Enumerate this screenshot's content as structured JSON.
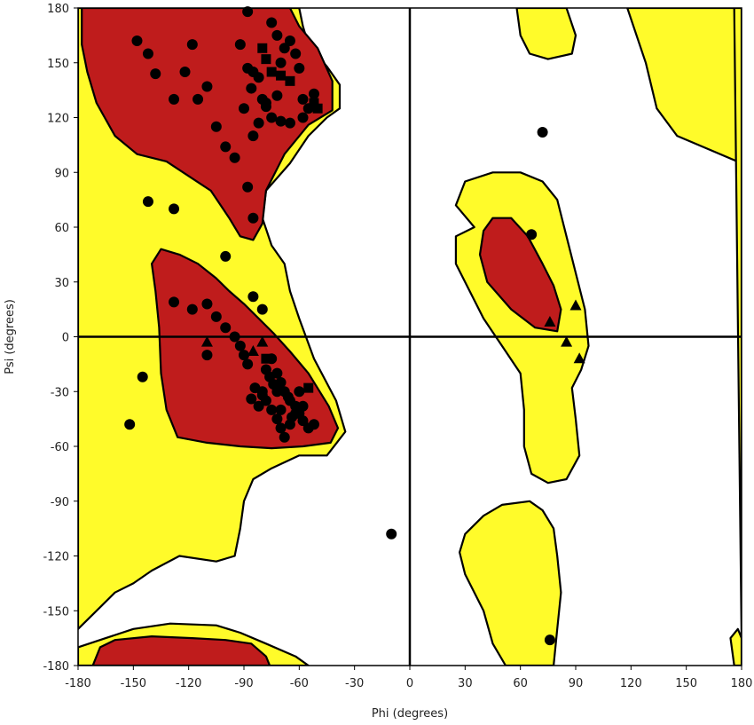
{
  "chart_data": {
    "type": "scatter",
    "title": "",
    "xlabel": "Phi (degrees)",
    "ylabel": "Psi (degrees)",
    "xlim": [
      -180,
      180
    ],
    "ylim": [
      -180,
      180
    ],
    "xticks": [
      -180,
      -150,
      -120,
      -90,
      -60,
      -30,
      0,
      30,
      60,
      90,
      120,
      150,
      180
    ],
    "yticks": [
      -180,
      -150,
      -120,
      -90,
      -60,
      -30,
      0,
      30,
      60,
      90,
      120,
      150,
      180
    ],
    "xtick_labels": [
      "-180",
      "-150",
      "-120",
      "-90",
      "-60",
      "-30",
      "0",
      "30",
      "60",
      "90",
      "120",
      "150",
      "180"
    ],
    "ytick_labels": [
      "-180",
      "-150",
      "-120",
      "-90",
      "-60",
      "-30",
      "0",
      "30",
      "60",
      "90",
      "120",
      "150",
      "180"
    ],
    "grid": false,
    "reference_lines": {
      "phi": 0,
      "psi": 0
    },
    "regions": {
      "colors": {
        "allowed": "#fffb2a",
        "favored": "#bf1c1c",
        "outline": "#000000"
      },
      "allowed": [
        [
          [
            -180,
            90
          ],
          [
            -180,
            -160
          ],
          [
            -170,
            -150
          ],
          [
            -160,
            -140
          ],
          [
            -150,
            -135
          ],
          [
            -140,
            -128
          ],
          [
            -125,
            -120
          ],
          [
            -105,
            -123
          ],
          [
            -95,
            -120
          ],
          [
            -92,
            -105
          ],
          [
            -90,
            -90
          ],
          [
            -85,
            -78
          ],
          [
            -75,
            -72
          ],
          [
            -60,
            -65
          ],
          [
            -45,
            -65
          ],
          [
            -35,
            -52
          ],
          [
            -40,
            -35
          ],
          [
            -52,
            -12
          ],
          [
            -60,
            10
          ],
          [
            -65,
            25
          ],
          [
            -68,
            40
          ],
          [
            -75,
            50
          ],
          [
            -80,
            65
          ],
          [
            -78,
            80
          ],
          [
            -65,
            95
          ],
          [
            -55,
            110
          ],
          [
            -45,
            120
          ],
          [
            -38,
            125
          ],
          [
            -38,
            138
          ],
          [
            -45,
            148
          ],
          [
            -55,
            160
          ],
          [
            -58,
            170
          ],
          [
            -60,
            180
          ],
          [
            -180,
            180
          ]
        ],
        [
          [
            -180,
            -180
          ],
          [
            -180,
            -170
          ],
          [
            -165,
            -165
          ],
          [
            -150,
            -160
          ],
          [
            -130,
            -157
          ],
          [
            -105,
            -158
          ],
          [
            -92,
            -162
          ],
          [
            -78,
            -168
          ],
          [
            -62,
            -175
          ],
          [
            -55,
            -180
          ]
        ],
        [
          [
            35,
            60
          ],
          [
            25,
            72
          ],
          [
            30,
            85
          ],
          [
            45,
            90
          ],
          [
            60,
            90
          ],
          [
            72,
            85
          ],
          [
            80,
            75
          ],
          [
            85,
            55
          ],
          [
            90,
            35
          ],
          [
            95,
            15
          ],
          [
            97,
            -5
          ],
          [
            93,
            -18
          ],
          [
            88,
            -28
          ],
          [
            90,
            -45
          ],
          [
            92,
            -65
          ],
          [
            85,
            -78
          ],
          [
            75,
            -80
          ],
          [
            66,
            -75
          ],
          [
            62,
            -60
          ],
          [
            62,
            -40
          ],
          [
            60,
            -20
          ],
          [
            50,
            -5
          ],
          [
            40,
            10
          ],
          [
            25,
            40
          ],
          [
            25,
            55
          ]
        ],
        [
          [
            50,
            -92
          ],
          [
            40,
            -98
          ],
          [
            30,
            -108
          ],
          [
            27,
            -118
          ],
          [
            30,
            -130
          ],
          [
            40,
            -150
          ],
          [
            45,
            -168
          ],
          [
            52,
            -180
          ],
          [
            78,
            -180
          ],
          [
            80,
            -160
          ],
          [
            82,
            -140
          ],
          [
            80,
            -120
          ],
          [
            78,
            -105
          ],
          [
            72,
            -95
          ],
          [
            65,
            -90
          ]
        ],
        [
          [
            118,
            180
          ],
          [
            128,
            150
          ],
          [
            134,
            125
          ],
          [
            145,
            110
          ],
          [
            180,
            95
          ],
          [
            180,
            180
          ]
        ],
        [
          [
            58,
            180
          ],
          [
            60,
            165
          ],
          [
            65,
            155
          ],
          [
            75,
            152
          ],
          [
            88,
            155
          ],
          [
            90,
            165
          ],
          [
            85,
            180
          ]
        ],
        [
          [
            176,
            180
          ],
          [
            180,
            180
          ],
          [
            180,
            -180
          ],
          [
            176,
            -180
          ],
          [
            174,
            -165
          ],
          [
            178,
            -160
          ],
          [
            180,
            -165
          ]
        ]
      ],
      "favored": [
        [
          [
            -178,
            180
          ],
          [
            -178,
            160
          ],
          [
            -175,
            145
          ],
          [
            -170,
            128
          ],
          [
            -160,
            110
          ],
          [
            -148,
            100
          ],
          [
            -132,
            96
          ],
          [
            -120,
            88
          ],
          [
            -108,
            80
          ],
          [
            -98,
            65
          ],
          [
            -92,
            55
          ],
          [
            -85,
            53
          ],
          [
            -80,
            62
          ],
          [
            -78,
            80
          ],
          [
            -68,
            100
          ],
          [
            -55,
            116
          ],
          [
            -42,
            124
          ],
          [
            -42,
            140
          ],
          [
            -50,
            158
          ],
          [
            -60,
            170
          ],
          [
            -65,
            180
          ]
        ],
        [
          [
            -140,
            40
          ],
          [
            -138,
            25
          ],
          [
            -136,
            5
          ],
          [
            -135,
            -20
          ],
          [
            -132,
            -40
          ],
          [
            -126,
            -55
          ],
          [
            -110,
            -58
          ],
          [
            -92,
            -60
          ],
          [
            -75,
            -61
          ],
          [
            -58,
            -60
          ],
          [
            -43,
            -58
          ],
          [
            -39,
            -50
          ],
          [
            -44,
            -38
          ],
          [
            -55,
            -20
          ],
          [
            -65,
            -8
          ],
          [
            -74,
            2
          ],
          [
            -82,
            10
          ],
          [
            -90,
            18
          ],
          [
            -98,
            25
          ],
          [
            -105,
            32
          ],
          [
            -115,
            40
          ],
          [
            -125,
            45
          ],
          [
            -135,
            48
          ]
        ],
        [
          [
            -172,
            -180
          ],
          [
            -168,
            -170
          ],
          [
            -160,
            -166
          ],
          [
            -140,
            -164
          ],
          [
            -118,
            -165
          ],
          [
            -100,
            -166
          ],
          [
            -86,
            -168
          ],
          [
            -78,
            -175
          ],
          [
            -76,
            -180
          ]
        ],
        [
          [
            40,
            58
          ],
          [
            38,
            45
          ],
          [
            42,
            30
          ],
          [
            55,
            15
          ],
          [
            68,
            5
          ],
          [
            80,
            3
          ],
          [
            82,
            15
          ],
          [
            78,
            28
          ],
          [
            72,
            40
          ],
          [
            64,
            55
          ],
          [
            55,
            65
          ],
          [
            45,
            65
          ]
        ]
      ]
    },
    "series": [
      {
        "marker": "circle",
        "points": [
          [
            -88,
            178
          ],
          [
            -148,
            162
          ],
          [
            -142,
            155
          ],
          [
            -138,
            144
          ],
          [
            -118,
            160
          ],
          [
            -122,
            145
          ],
          [
            -115,
            130
          ],
          [
            -110,
            137
          ],
          [
            -128,
            130
          ],
          [
            -105,
            115
          ],
          [
            -100,
            104
          ],
          [
            -92,
            160
          ],
          [
            -88,
            147
          ],
          [
            -85,
            145
          ],
          [
            -82,
            142
          ],
          [
            -86,
            136
          ],
          [
            -80,
            130
          ],
          [
            -78,
            128
          ],
          [
            -75,
            120
          ],
          [
            -72,
            132
          ],
          [
            -70,
            150
          ],
          [
            -68,
            158
          ],
          [
            -65,
            162
          ],
          [
            -62,
            155
          ],
          [
            -60,
            147
          ],
          [
            -58,
            130
          ],
          [
            -55,
            125
          ],
          [
            -52,
            133
          ],
          [
            -58,
            120
          ],
          [
            -65,
            117
          ],
          [
            -70,
            118
          ],
          [
            -78,
            126
          ],
          [
            -82,
            117
          ],
          [
            -85,
            110
          ],
          [
            -90,
            125
          ],
          [
            -95,
            98
          ],
          [
            -88,
            82
          ],
          [
            -85,
            65
          ],
          [
            -75,
            172
          ],
          [
            -72,
            165
          ],
          [
            -142,
            74
          ],
          [
            -128,
            70
          ],
          [
            -100,
            44
          ],
          [
            -128,
            19
          ],
          [
            -118,
            15
          ],
          [
            -110,
            18
          ],
          [
            -105,
            11
          ],
          [
            -100,
            5
          ],
          [
            -95,
            0
          ],
          [
            -92,
            -5
          ],
          [
            -90,
            -10
          ],
          [
            -88,
            -15
          ],
          [
            -85,
            22
          ],
          [
            -80,
            15
          ],
          [
            -75,
            -12
          ],
          [
            -78,
            -18
          ],
          [
            -72,
            -20
          ],
          [
            -70,
            -25
          ],
          [
            -68,
            -30
          ],
          [
            -65,
            -35
          ],
          [
            -62,
            -38
          ],
          [
            -60,
            -42
          ],
          [
            -58,
            -46
          ],
          [
            -55,
            -50
          ],
          [
            -52,
            -48
          ],
          [
            -80,
            -30
          ],
          [
            -78,
            -35
          ],
          [
            -75,
            -40
          ],
          [
            -72,
            -45
          ],
          [
            -70,
            -50
          ],
          [
            -68,
            -55
          ],
          [
            -65,
            -48
          ],
          [
            -62,
            -42
          ],
          [
            -58,
            -38
          ],
          [
            -72,
            -30
          ],
          [
            -74,
            -26
          ],
          [
            -76,
            -22
          ],
          [
            -84,
            -28
          ],
          [
            -80,
            -32
          ],
          [
            -66,
            -33
          ],
          [
            -64,
            -44
          ],
          [
            -70,
            -40
          ],
          [
            -60,
            -30
          ],
          [
            -86,
            -34
          ],
          [
            -82,
            -38
          ],
          [
            -110,
            -10
          ],
          [
            -145,
            -22
          ],
          [
            -152,
            -48
          ],
          [
            -10,
            -108
          ],
          [
            72,
            112
          ],
          [
            66,
            56
          ],
          [
            76,
            -166
          ]
        ]
      },
      {
        "marker": "triangle",
        "points": [
          [
            -110,
            -3
          ],
          [
            -85,
            -8
          ],
          [
            -80,
            -3
          ],
          [
            76,
            8
          ],
          [
            90,
            17
          ],
          [
            85,
            -3
          ],
          [
            92,
            -12
          ]
        ]
      },
      {
        "marker": "square",
        "points": [
          [
            -80,
            158
          ],
          [
            -78,
            152
          ],
          [
            -75,
            145
          ],
          [
            -70,
            143
          ],
          [
            -65,
            140
          ],
          [
            -52,
            128
          ],
          [
            -50,
            125
          ],
          [
            -55,
            -28
          ],
          [
            -78,
            -12
          ]
        ]
      }
    ]
  }
}
